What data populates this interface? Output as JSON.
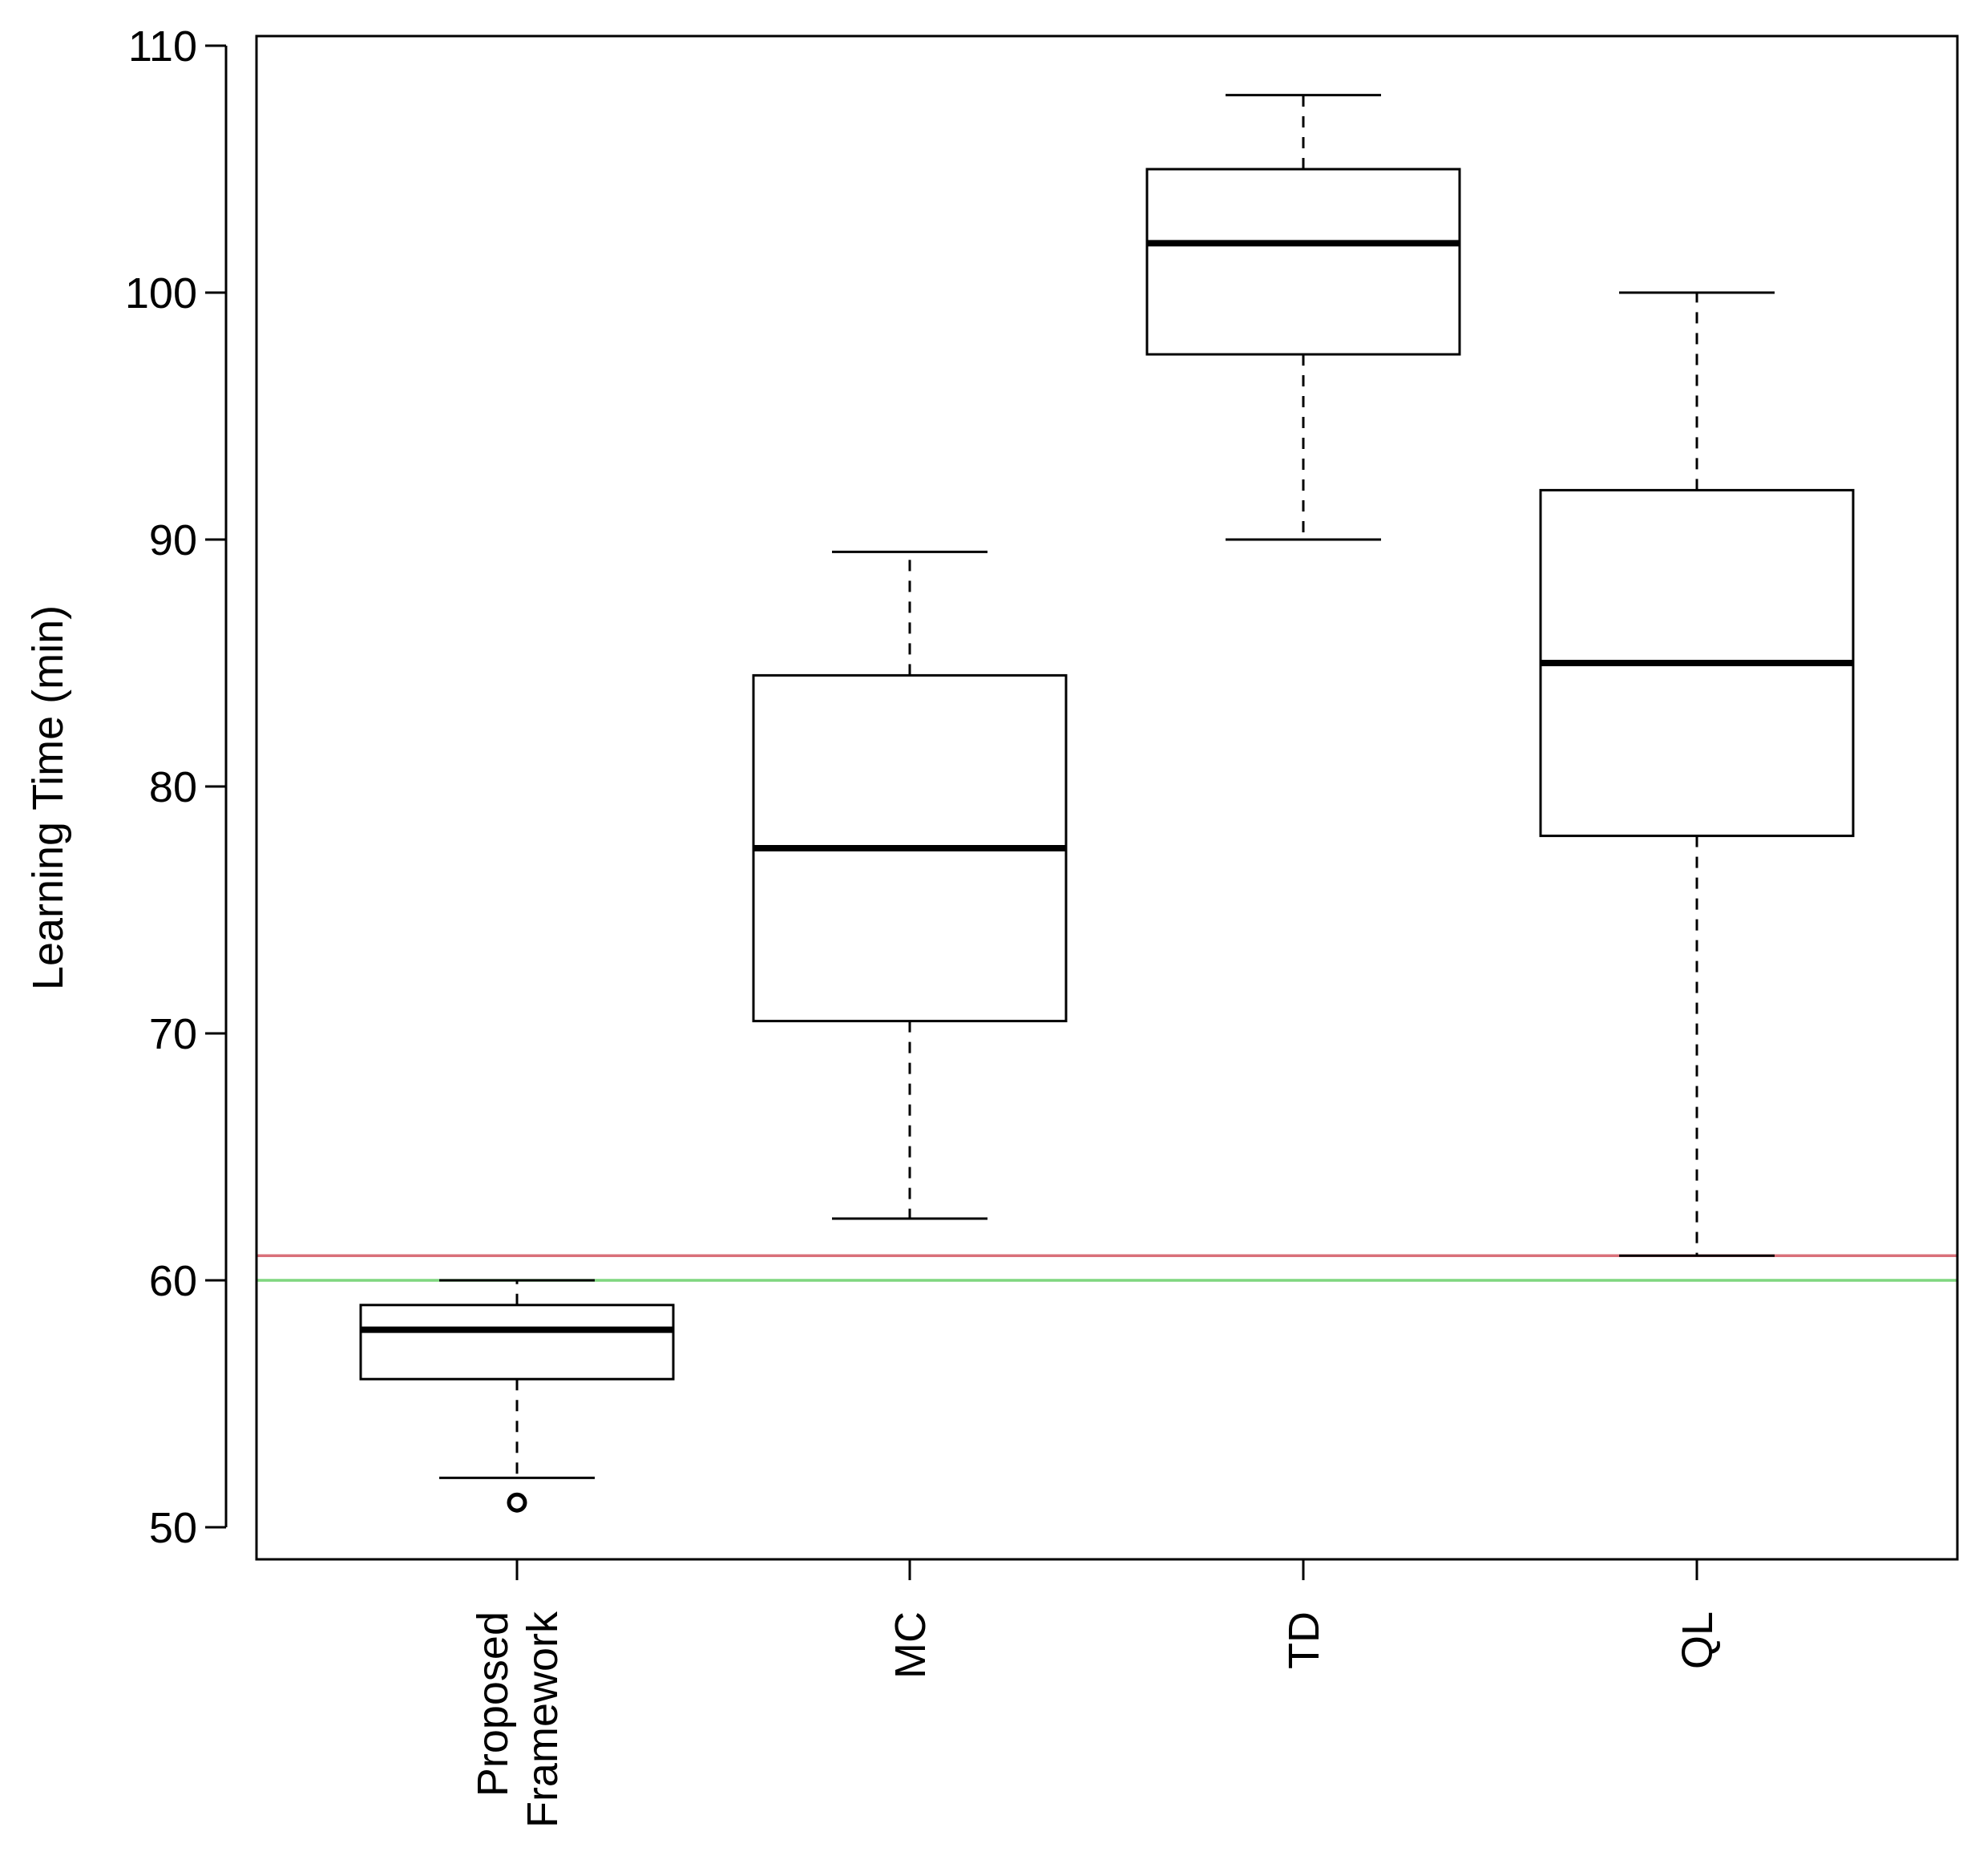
{
  "chart_data": {
    "type": "boxplot",
    "title": "",
    "xlabel": "",
    "ylabel": "Learning Time (min)",
    "ylim": [
      48,
      110.5
    ],
    "yticks": [
      50,
      60,
      70,
      80,
      90,
      100,
      110
    ],
    "categories": [
      {
        "label_lines": [
          "Proposed",
          "Framework"
        ]
      },
      {
        "label_lines": [
          "MC"
        ]
      },
      {
        "label_lines": [
          "TD"
        ]
      },
      {
        "label_lines": [
          "QL"
        ]
      }
    ],
    "boxes": [
      {
        "whisker_low": 52,
        "q1": 56,
        "median": 58,
        "q3": 59,
        "whisker_high": 60,
        "outliers": [
          51
        ]
      },
      {
        "whisker_low": 62.5,
        "q1": 70.5,
        "median": 77.5,
        "q3": 84.5,
        "whisker_high": 89.5,
        "outliers": []
      },
      {
        "whisker_low": 90,
        "q1": 97.5,
        "median": 102,
        "q3": 105,
        "whisker_high": 108,
        "outliers": []
      },
      {
        "whisker_low": 61,
        "q1": 78,
        "median": 85,
        "q3": 92,
        "whisker_high": 100,
        "outliers": []
      }
    ],
    "reference_lines": [
      {
        "value": 61,
        "color": "#d9707a"
      },
      {
        "value": 60,
        "color": "#7fd67f"
      }
    ],
    "grid": false
  }
}
